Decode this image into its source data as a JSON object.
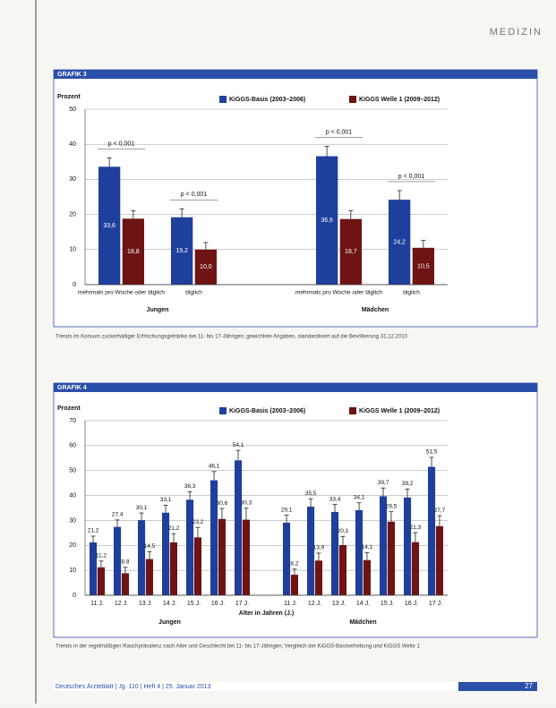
{
  "header": {
    "section": "MEDIZIN"
  },
  "chart_data": [
    {
      "type": "bar",
      "title": "GRAFIK 3",
      "ylabel": "Prozent",
      "categories": [
        "mehrmals pro Woche oder täglich",
        "täglich",
        "mehrmals pro Woche oder täglich",
        "täglich"
      ],
      "group_labels": [
        "Jungen",
        "Mädchen"
      ],
      "ylim": [
        0,
        50
      ],
      "yticks": [
        0,
        10,
        20,
        30,
        40,
        50
      ],
      "grid": true,
      "label_position": "inside",
      "annotations": [
        "p < 0,001",
        "p < 0,001",
        "p < 0,001",
        "p < 0,001"
      ],
      "series": [
        {
          "name": "KiGGS-Basis (2003–2006)",
          "color": "#1f3f9c",
          "values": [
            33.6,
            19.2,
            36.6,
            24.2
          ],
          "errors": [
            2.5,
            2.4,
            2.8,
            2.6
          ],
          "value_labels": [
            "33,6",
            "19,2",
            "36,6",
            "24,2"
          ]
        },
        {
          "name": "KiGGS Welle 1 (2009–2012)",
          "color": "#6e1414",
          "values": [
            18.8,
            10.0,
            18.7,
            10.5
          ],
          "errors": [
            2.3,
            2.0,
            2.4,
            2.1
          ],
          "value_labels": [
            "18,8",
            "10,0",
            "18,7",
            "10,5"
          ]
        }
      ],
      "caption": "Trends im Konsum zuckerhaltiger Erfrischungsgetränke bei 11- bis 17-Jährigen; gewichtete Angaben, standardisiert auf die Bevölkerung 31.12.2010"
    },
    {
      "type": "bar",
      "title": "GRAFIK 4",
      "ylabel": "Prozent",
      "xlabel": "Alter in Jahren (J.)",
      "categories": [
        "11 J.",
        "12 J.",
        "13 J.",
        "14 J.",
        "15 J.",
        "16 J.",
        "17 J.",
        "11 J.",
        "12 J.",
        "13 J.",
        "14 J.",
        "15 J.",
        "16 J.",
        "17 J."
      ],
      "group_labels": [
        "Jungen",
        "Mädchen"
      ],
      "ylim": [
        0,
        70
      ],
      "yticks": [
        0,
        10,
        20,
        30,
        40,
        50,
        60,
        70
      ],
      "grid": true,
      "label_position": "above",
      "series": [
        {
          "name": "KiGGS-Basis (2003–2006)",
          "color": "#1f3f9c",
          "values": [
            21.2,
            27.4,
            30.1,
            33.1,
            38.3,
            46.1,
            54.1,
            29.1,
            35.5,
            33.4,
            34.1,
            39.7,
            39.2,
            51.5
          ],
          "errors": [
            2.5,
            2.8,
            2.9,
            3.0,
            3.2,
            3.5,
            4.0,
            3.0,
            3.2,
            3.0,
            3.0,
            3.3,
            3.4,
            3.8
          ],
          "value_labels": [
            "21,2",
            "27,4",
            "30,1",
            "33,1",
            "38,3",
            "46,1",
            "54,1",
            "29,1",
            "35,5",
            "33,4",
            "34,1",
            "39,7",
            "39,2",
            "51,5"
          ]
        },
        {
          "name": "KiGGS Welle 1 (2009–2012)",
          "color": "#6e1414",
          "values": [
            11.2,
            8.8,
            14.5,
            21.2,
            23.2,
            30.6,
            30.3,
            8.2,
            13.9,
            20.1,
            14.1,
            29.5,
            21.3,
            27.7
          ],
          "errors": [
            2.5,
            2.4,
            3.0,
            3.5,
            4.0,
            4.2,
            4.6,
            2.3,
            3.0,
            3.5,
            3.0,
            4.0,
            3.8,
            4.2
          ],
          "value_labels": [
            "11,2",
            "8,8",
            "14,5",
            "21,2",
            "23,2",
            "30,6",
            "30,3",
            "8,2",
            "13,9",
            "20,1",
            "14,1",
            "29,5",
            "21,3",
            "27,7"
          ]
        }
      ],
      "caption": "Trends in der regelmäßigen Rauchprävalenz nach Alter und Geschlecht bei 11- bis 17-Jährigen; Vergleich der KiGGS-Basiserhebung und KiGGS Welle 1"
    }
  ],
  "footer": {
    "journal": "Deutsches Ärzteblatt | Jg. 110 | Heft 4 | 25. Januar 2013",
    "page": "27"
  }
}
